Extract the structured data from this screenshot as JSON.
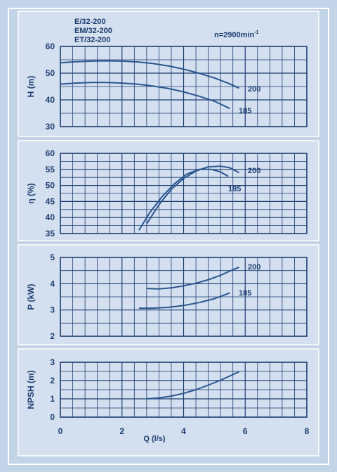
{
  "models": [
    "E/32-200",
    "EM/32-200",
    "ET/32-200"
  ],
  "speed_label": "n=2900min",
  "speed_exp": "-1",
  "xlabel": "Q (l/s)",
  "colors": {
    "background": "#c3d3e8",
    "panel": "#d4e0ef",
    "grid": "#1c3c70",
    "curve": "#2a5590",
    "text": "#1c3c70",
    "frame": "#ffffff"
  },
  "x_ticks": [
    "0",
    "2",
    "4",
    "6",
    "8"
  ],
  "chart_data": [
    {
      "type": "line",
      "ylabel": "H (m)",
      "xlim": [
        0,
        8
      ],
      "ylim": [
        30,
        60
      ],
      "y_ticks": [
        "30",
        "40",
        "50",
        "60"
      ],
      "grid": true,
      "series": [
        {
          "name": "200",
          "x": [
            0,
            0.5,
            1,
            1.5,
            2,
            2.5,
            3,
            3.5,
            4,
            4.5,
            5,
            5.5,
            5.8
          ],
          "y": [
            53.9,
            54.3,
            54.5,
            54.6,
            54.5,
            54.2,
            53.6,
            52.7,
            51.5,
            50.0,
            48.2,
            46.0,
            44.4
          ]
        },
        {
          "name": "185",
          "x": [
            0,
            0.5,
            1,
            1.5,
            2,
            2.5,
            3,
            3.5,
            4,
            4.5,
            5,
            5.5
          ],
          "y": [
            45.9,
            46.3,
            46.5,
            46.5,
            46.3,
            45.9,
            45.2,
            44.3,
            43.0,
            41.4,
            39.5,
            36.8
          ]
        }
      ]
    },
    {
      "type": "line",
      "ylabel": "η (%)",
      "xlim": [
        0,
        8
      ],
      "ylim": [
        35,
        60
      ],
      "y_ticks": [
        "35",
        "40",
        "45",
        "50",
        "55",
        "60"
      ],
      "grid": true,
      "series": [
        {
          "name": "200",
          "x": [
            2.8,
            3.2,
            3.6,
            4.0,
            4.4,
            4.8,
            5.2,
            5.5,
            5.8
          ],
          "y": [
            38.0,
            44.0,
            48.8,
            52.2,
            54.5,
            55.8,
            56.0,
            55.5,
            54.0
          ]
        },
        {
          "name": "185",
          "x": [
            2.55,
            2.9,
            3.3,
            3.7,
            4.1,
            4.5,
            4.9,
            5.2,
            5.45
          ],
          "y": [
            36.0,
            41.5,
            46.5,
            50.5,
            53.5,
            55.0,
            55.0,
            54.2,
            52.8
          ]
        }
      ]
    },
    {
      "type": "line",
      "ylabel": "P (kW)",
      "xlim": [
        0,
        8
      ],
      "ylim": [
        2,
        5
      ],
      "y_ticks": [
        "2",
        "3",
        "4",
        "5"
      ],
      "grid": true,
      "series": [
        {
          "name": "200",
          "x": [
            2.8,
            3.2,
            3.6,
            4.0,
            4.4,
            4.8,
            5.2,
            5.5,
            5.8
          ],
          "y": [
            3.82,
            3.8,
            3.84,
            3.92,
            4.02,
            4.15,
            4.32,
            4.48,
            4.63
          ]
        },
        {
          "name": "185",
          "x": [
            2.55,
            3.0,
            3.5,
            4.0,
            4.5,
            5.0,
            5.5
          ],
          "y": [
            3.07,
            3.07,
            3.1,
            3.17,
            3.28,
            3.43,
            3.65
          ]
        }
      ]
    },
    {
      "type": "line",
      "ylabel": "NPSH (m)",
      "xlim": [
        0,
        8
      ],
      "ylim": [
        0,
        3
      ],
      "y_ticks": [
        "0",
        "1",
        "2",
        "3"
      ],
      "grid": true,
      "series": [
        {
          "x": [
            2.8,
            3.2,
            3.6,
            4.0,
            4.4,
            4.8,
            5.2,
            5.5,
            5.8
          ],
          "y": [
            1.0,
            1.05,
            1.15,
            1.3,
            1.5,
            1.75,
            2.02,
            2.25,
            2.48
          ]
        }
      ]
    }
  ],
  "curve_labels": [
    "200",
    "185",
    "200",
    "185",
    "200",
    "185"
  ]
}
